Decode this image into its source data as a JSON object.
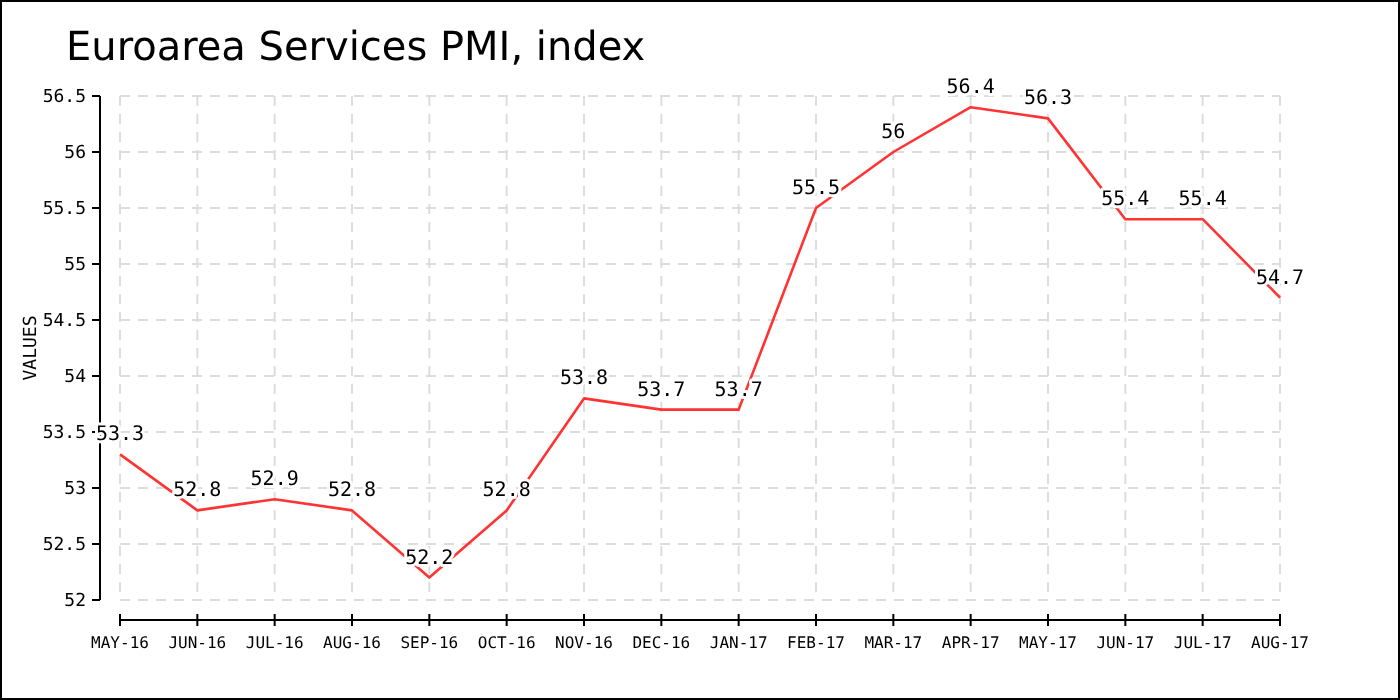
{
  "chart_data": {
    "type": "line",
    "title": "Euroarea Services PMI, index",
    "ylabel": "VALUES",
    "categories": [
      "MAY-16",
      "JUN-16",
      "JUL-16",
      "AUG-16",
      "SEP-16",
      "OCT-16",
      "NOV-16",
      "DEC-16",
      "JAN-17",
      "FEB-17",
      "MAR-17",
      "APR-17",
      "MAY-17",
      "JUN-17",
      "JUL-17",
      "AUG-17"
    ],
    "series": [
      {
        "color": "#ff3333",
        "values": [
          53.3,
          52.8,
          52.9,
          52.8,
          52.2,
          52.8,
          53.8,
          53.7,
          53.7,
          55.5,
          56,
          56.4,
          56.3,
          55.4,
          55.4,
          54.7
        ]
      }
    ],
    "ylim": [
      52,
      56.5
    ],
    "yticks": [
      52,
      52.5,
      53,
      53.5,
      54,
      54.5,
      55,
      55.5,
      56,
      56.5
    ],
    "grid": true,
    "data_labels": true,
    "marker": "none",
    "line_style": "solid"
  }
}
